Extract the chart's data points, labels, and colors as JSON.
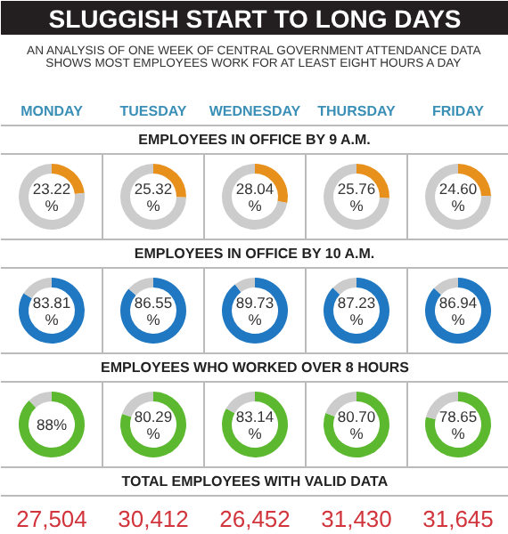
{
  "chart_data": [
    {
      "type": "other",
      "title": "SLUGGISH START TO LONG DAYS",
      "subtitle": "AN ANALYSIS OF ONE WEEK OF CENTRAL GOVERNMENT ATTENDANCE DATA\nSHOWS MOST EMPLOYEES WORK FOR AT LEAST EIGHT HOURS A DAY",
      "annotations": [
        "MONDAY",
        "TUESDAY",
        "WEDNESDAY",
        "THURSDAY",
        "FRIDAY"
      ]
    },
    {
      "type": "other",
      "title": "EMPLOYEES IN OFFICE BY 9 A.M."
    },
    {
      "type": "donut",
      "categories": [
        null,
        null
      ],
      "values": [
        23.22,
        76.78
      ],
      "colors": [
        "#e8901c",
        "#cccccc"
      ],
      "value_labels": [
        "23.22\n%",
        null
      ]
    },
    {
      "type": "donut",
      "categories": [
        null,
        null
      ],
      "values": [
        25.32,
        74.68
      ],
      "colors": [
        "#e8901c",
        "#cccccc"
      ],
      "value_labels": [
        "25.32\n%",
        null
      ]
    },
    {
      "type": "donut",
      "categories": [
        null,
        null
      ],
      "values": [
        28.04,
        71.96
      ],
      "colors": [
        "#e8901c",
        "#cccccc"
      ],
      "value_labels": [
        "28.04\n%",
        null
      ]
    },
    {
      "type": "donut",
      "categories": [
        null,
        null
      ],
      "values": [
        25.76,
        74.24
      ],
      "colors": [
        "#e8901c",
        "#cccccc"
      ],
      "value_labels": [
        "25.76\n%",
        null
      ]
    },
    {
      "type": "donut",
      "categories": [
        null,
        null
      ],
      "values": [
        24.6,
        75.4
      ],
      "colors": [
        "#e8901c",
        "#cccccc"
      ],
      "value_labels": [
        "24.60\n%",
        null
      ]
    },
    {
      "type": "other",
      "title": "EMPLOYEES IN OFFICE BY 10 A.M."
    },
    {
      "type": "donut",
      "categories": [
        null,
        null
      ],
      "values": [
        83.81,
        16.19
      ],
      "colors": [
        "#1f78c1",
        "#cccccc"
      ],
      "value_labels": [
        "83.81\n%",
        null
      ]
    },
    {
      "type": "donut",
      "categories": [
        null,
        null
      ],
      "values": [
        86.55,
        13.45
      ],
      "colors": [
        "#1f78c1",
        "#cccccc"
      ],
      "value_labels": [
        "86.55\n%",
        null
      ]
    },
    {
      "type": "donut",
      "categories": [
        null,
        null
      ],
      "values": [
        89.73,
        10.27
      ],
      "colors": [
        "#1f78c1",
        "#cccccc"
      ],
      "value_labels": [
        "89.73\n%",
        null
      ]
    },
    {
      "type": "donut",
      "categories": [
        null,
        null
      ],
      "values": [
        87.23,
        12.77
      ],
      "colors": [
        "#1f78c1",
        "#cccccc"
      ],
      "value_labels": [
        "87.23\n%",
        null
      ]
    },
    {
      "type": "donut",
      "categories": [
        null,
        null
      ],
      "values": [
        86.94,
        13.06
      ],
      "colors": [
        "#1f78c1",
        "#cccccc"
      ],
      "value_labels": [
        "86.94\n%",
        null
      ]
    },
    {
      "type": "other",
      "title": "EMPLOYEES WHO WORKED OVER 8 HOURS"
    },
    {
      "type": "donut",
      "categories": [
        null,
        null
      ],
      "values": [
        88,
        12
      ],
      "colors": [
        "#5cb82e",
        "#cccccc"
      ],
      "value_labels": [
        "88%",
        null
      ]
    },
    {
      "type": "donut",
      "categories": [
        null,
        null
      ],
      "values": [
        80.29,
        19.71
      ],
      "colors": [
        "#5cb82e",
        "#cccccc"
      ],
      "value_labels": [
        "80.29\n%",
        null
      ]
    },
    {
      "type": "donut",
      "categories": [
        null,
        null
      ],
      "values": [
        83.14,
        16.86
      ],
      "colors": [
        "#5cb82e",
        "#cccccc"
      ],
      "value_labels": [
        "83.14\n%",
        null
      ]
    },
    {
      "type": "donut",
      "categories": [
        null,
        null
      ],
      "values": [
        80.7,
        19.3
      ],
      "colors": [
        "#5cb82e",
        "#cccccc"
      ],
      "value_labels": [
        "80.70\n%",
        null
      ]
    },
    {
      "type": "donut",
      "categories": [
        null,
        null
      ],
      "values": [
        78.65,
        21.35
      ],
      "colors": [
        "#5cb82e",
        "#cccccc"
      ],
      "value_labels": [
        "78.65\n%",
        null
      ]
    },
    {
      "type": "other",
      "title": "TOTAL EMPLOYEES WITH VALID DATA",
      "annotations": [
        "27,504",
        "30,412",
        "26,452",
        "31,430",
        "31,645"
      ]
    }
  ]
}
